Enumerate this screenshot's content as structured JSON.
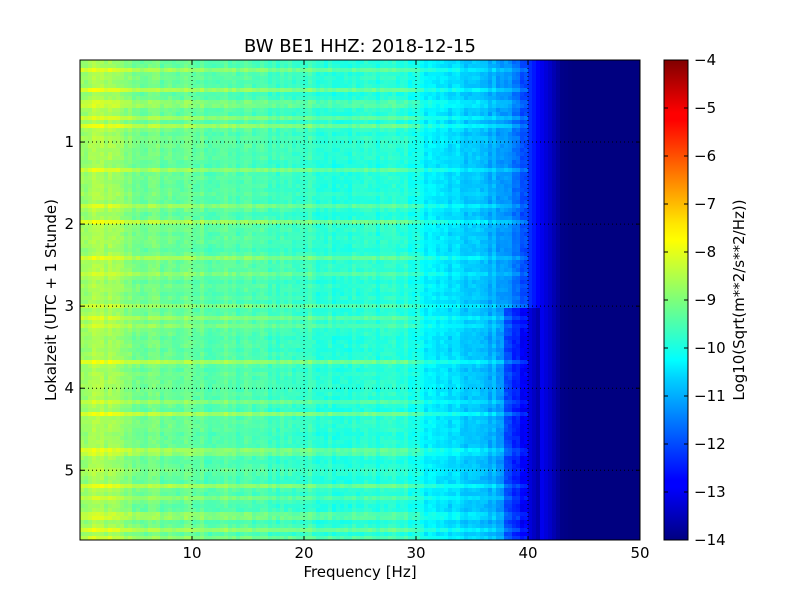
{
  "chart_data": {
    "type": "heatmap",
    "title": "BW BE1 HHZ: 2018-12-15",
    "xlabel": "Frequency [Hz]",
    "ylabel": "Lokalzeit (UTC + 1 Stunde)",
    "xlim": [
      0,
      50
    ],
    "ylim": [
      0,
      5.85
    ],
    "y_inverted": true,
    "x_ticks": [
      10,
      20,
      30,
      40,
      50
    ],
    "y_ticks": [
      1,
      2,
      3,
      4,
      5
    ],
    "grid": true,
    "colormap": "jet",
    "colorbar": {
      "label": "Log10(Sqrt(m**2/s**2/Hz))",
      "range": [
        -14,
        -4
      ],
      "ticks": [
        -4,
        -5,
        -6,
        -7,
        -8,
        -9,
        -10,
        -11,
        -12,
        -13,
        -14
      ]
    },
    "frequency_profile": {
      "x": [
        0,
        2,
        5,
        10,
        15,
        20,
        25,
        28,
        30,
        32,
        35,
        38,
        40,
        41,
        42,
        43,
        44,
        50
      ],
      "level": [
        -8.8,
        -8.6,
        -9.1,
        -9.3,
        -9.5,
        -9.7,
        -9.9,
        -9.8,
        -10.1,
        -10.5,
        -10.8,
        -11.2,
        -12.2,
        -12.8,
        -13.3,
        -13.9,
        -14,
        -14
      ]
    }
  }
}
